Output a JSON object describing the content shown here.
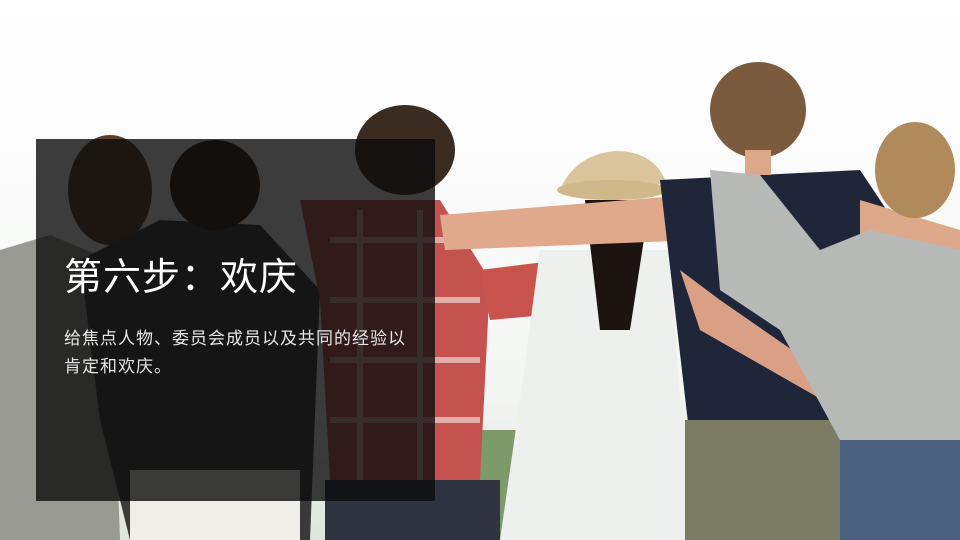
{
  "slide": {
    "title": "第六步：欢庆",
    "body": "给焦点人物、委员会成员以及共同的经验以肯定和欢庆。"
  },
  "colors": {
    "overlay": "#0c0c0c",
    "text": "#ffffff",
    "background": "#ffffff"
  },
  "icons": [
    "group-photo"
  ]
}
